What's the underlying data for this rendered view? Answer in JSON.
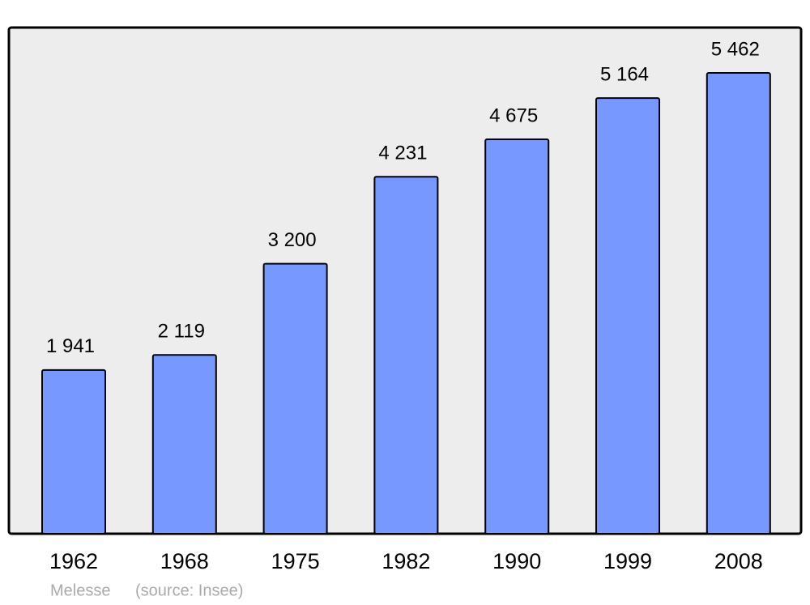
{
  "chart_data": {
    "type": "bar",
    "categories": [
      "1962",
      "1968",
      "1975",
      "1982",
      "1990",
      "1999",
      "2008"
    ],
    "values": [
      1941,
      2119,
      3200,
      4231,
      4675,
      5164,
      5462
    ],
    "value_labels": [
      "1 941",
      "2 119",
      "3 200",
      "4 231",
      "4 675",
      "5 164",
      "5 462"
    ],
    "color": "#7799ff",
    "ylim": [
      0,
      6000
    ],
    "annotations": [
      "Melesse",
      "(source: Insee)"
    ]
  }
}
